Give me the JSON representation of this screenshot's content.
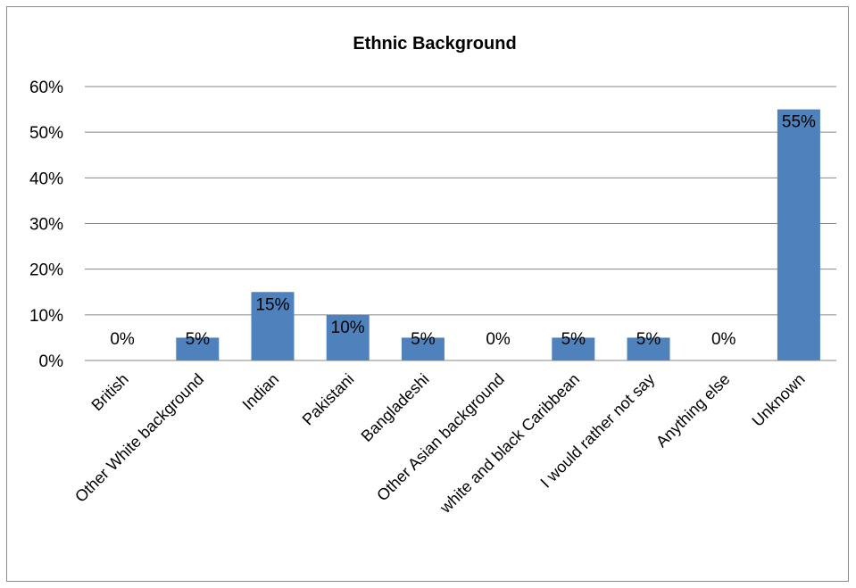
{
  "chart_data": {
    "type": "bar",
    "title": "Ethnic Background",
    "xlabel": "",
    "ylabel": "",
    "categories": [
      "British",
      "Other White background",
      "Indian",
      "Pakistani",
      "Bangladeshi",
      "Other Asian background",
      "white and black Caribbean",
      "I would rather not say",
      "Anything else",
      "Unknown"
    ],
    "values": [
      0,
      5,
      15,
      10,
      5,
      0,
      5,
      5,
      0,
      55
    ],
    "data_labels": [
      "0%",
      "5%",
      "15%",
      "10%",
      "5%",
      "0%",
      "5%",
      "5%",
      "0%",
      "55%"
    ],
    "ylim": [
      0,
      60
    ],
    "yticks": [
      "0%",
      "10%",
      "20%",
      "30%",
      "40%",
      "50%",
      "60%"
    ],
    "grid": true,
    "legend": "none",
    "bar_color": "#4f81bd",
    "grid_color": "#878787"
  }
}
